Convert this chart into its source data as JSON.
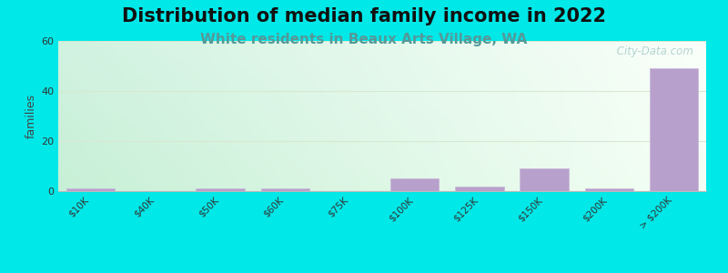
{
  "title": "Distribution of median family income in 2022",
  "subtitle": "White residents in Beaux Arts Village, WA",
  "ylabel": "families",
  "categories": [
    "$10K",
    "$40K",
    "$50K",
    "$60K",
    "$75K",
    "$100K",
    "$125K",
    "$150K",
    "$200K",
    "> $200K"
  ],
  "values": [
    1,
    0,
    1,
    1,
    0,
    5,
    2,
    9,
    1,
    49
  ],
  "bar_color": "#b8a0cc",
  "bar_edge_color": "#c8b8d8",
  "ylim": [
    0,
    60
  ],
  "yticks": [
    0,
    20,
    40,
    60
  ],
  "background_color": "#00e8e8",
  "plot_bg_topleft": "#c8eedd",
  "plot_bg_topright": "#e8f5f0",
  "plot_bg_bottomleft": "#d8f0e4",
  "plot_bg_bottomright": "#ffffff",
  "title_fontsize": 15,
  "subtitle_fontsize": 11,
  "subtitle_color": "#559999",
  "grid_color": "#d8e8d0",
  "watermark": " City-Data.com",
  "watermark_color": "#aacccc"
}
